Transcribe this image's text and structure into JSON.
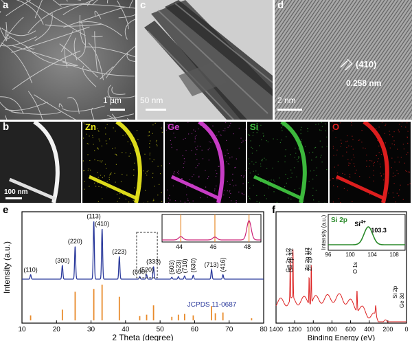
{
  "panel_a": {
    "label": "a",
    "scale": "1 μm"
  },
  "panel_c": {
    "label": "c",
    "scale": "50 nm"
  },
  "panel_d": {
    "label": "d",
    "scale": "2 nm",
    "plane": "(410)",
    "spacing": "0.258 nm"
  },
  "panel_b": {
    "label": "b",
    "scale": "100 nm",
    "maps": [
      {
        "element": "Zn",
        "color": "#e8e61c"
      },
      {
        "element": "Ge",
        "color": "#d23fd0"
      },
      {
        "element": "Si",
        "color": "#3fc23f"
      },
      {
        "element": "O",
        "color": "#e82020"
      }
    ]
  },
  "panel_e": {
    "label": "e"
  },
  "panel_f": {
    "label": "f"
  },
  "chart_data": [
    {
      "type": "line",
      "panel": "e",
      "xlabel": "2 Theta (degree)",
      "ylabel": "Intensity (a.u.)",
      "xlim": [
        10,
        80
      ],
      "xticks": [
        10,
        20,
        30,
        40,
        50,
        60,
        70,
        80
      ],
      "reference_label": "JCPDS 11-0687",
      "series_color": "#2b3a9c",
      "reference_color": "#e88a2a",
      "peaks": [
        {
          "x": 12.5,
          "h": 0.07,
          "label": "(110)"
        },
        {
          "x": 21.7,
          "h": 0.22,
          "label": "(300)"
        },
        {
          "x": 25.4,
          "h": 0.52,
          "label": "(220)"
        },
        {
          "x": 30.8,
          "h": 0.92,
          "label": "(113)"
        },
        {
          "x": 33.2,
          "h": 0.8,
          "label": "(410)"
        },
        {
          "x": 38.2,
          "h": 0.36,
          "label": "(223)"
        },
        {
          "x": 44.1,
          "h": 0.04,
          "label": "(600)"
        },
        {
          "x": 46.1,
          "h": 0.07,
          "label": "(520)"
        },
        {
          "x": 48.1,
          "h": 0.2,
          "label": "(333)"
        },
        {
          "x": 53.4,
          "h": 0.03,
          "label": "(603)"
        },
        {
          "x": 55.3,
          "h": 0.04,
          "label": "(523)"
        },
        {
          "x": 57.1,
          "h": 0.05,
          "label": "(710)"
        },
        {
          "x": 59.6,
          "h": 0.06,
          "label": "(630)"
        },
        {
          "x": 64.9,
          "h": 0.15,
          "label": "(713)"
        },
        {
          "x": 68.2,
          "h": 0.07,
          "label": "(416)"
        }
      ],
      "reference_sticks": [
        {
          "x": 12.5,
          "h": 0.14
        },
        {
          "x": 21.7,
          "h": 0.3
        },
        {
          "x": 25.4,
          "h": 0.8
        },
        {
          "x": 30.8,
          "h": 0.88
        },
        {
          "x": 33.2,
          "h": 1.0
        },
        {
          "x": 38.2,
          "h": 0.66
        },
        {
          "x": 44.1,
          "h": 0.12
        },
        {
          "x": 46.1,
          "h": 0.16
        },
        {
          "x": 48.1,
          "h": 0.42
        },
        {
          "x": 53.4,
          "h": 0.1
        },
        {
          "x": 55.3,
          "h": 0.16
        },
        {
          "x": 57.1,
          "h": 0.18
        },
        {
          "x": 59.6,
          "h": 0.14
        },
        {
          "x": 64.9,
          "h": 0.4
        },
        {
          "x": 66.0,
          "h": 0.2
        },
        {
          "x": 68.2,
          "h": 0.22
        },
        {
          "x": 76.5,
          "h": 0.06
        }
      ],
      "inset": {
        "xlim": [
          43,
          48.8
        ],
        "xticks": [
          44,
          46,
          48
        ],
        "peaks": [
          {
            "x": 44.1,
            "h": 0.15
          },
          {
            "x": 46.1,
            "h": 0.13
          },
          {
            "x": 48.1,
            "h": 0.88
          }
        ]
      }
    },
    {
      "type": "line",
      "panel": "f",
      "xlabel": "Binding Energy (eV)",
      "ylabel": "Intensity (a.u.)",
      "xlim": [
        1400,
        0
      ],
      "xticks": [
        1400,
        1200,
        1000,
        800,
        600,
        400,
        200,
        0
      ],
      "series_color": "#dd2222",
      "peak_labels": [
        {
          "x": 1248,
          "label": "Ge 2p 1/2"
        },
        {
          "x": 1218,
          "label": "Ge 2p 3/2"
        },
        {
          "x": 1045,
          "label": "Zn 2p 1/2"
        },
        {
          "x": 1022,
          "label": "Zn 2p 3/2"
        },
        {
          "x": 531,
          "label": "O 1s"
        },
        {
          "x": 103,
          "label": "Si 2p"
        },
        {
          "x": 30,
          "label": "Ge 3d"
        }
      ],
      "inset": {
        "title": "Si 2p",
        "peak_label": "Si",
        "peak_sup": "4+",
        "peak_value": "103.3",
        "ylabel": "Intensity (a.u.)",
        "xlim": [
          96,
          110
        ],
        "xticks": [
          96,
          100,
          104,
          108
        ],
        "peak_center": 103.3,
        "color": "#2a8a2a"
      }
    }
  ]
}
